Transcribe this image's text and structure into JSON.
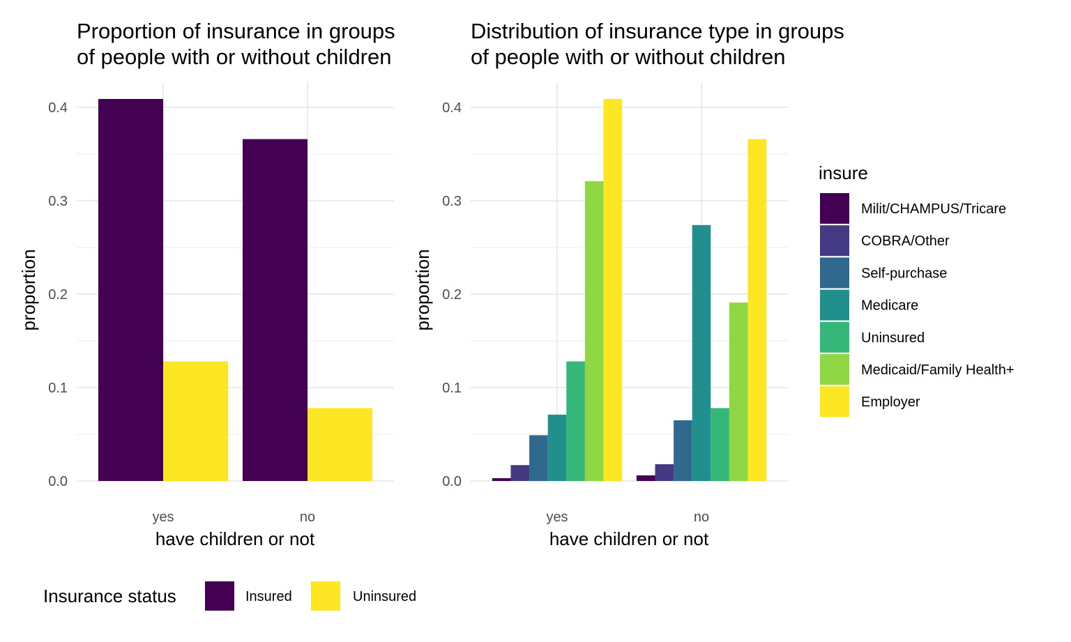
{
  "chart_data": [
    {
      "type": "bar",
      "title_lines": [
        "Proportion of insurance in groups",
        "of people with or without children"
      ],
      "xlabel": "have children or not",
      "ylabel": "proportion",
      "categories": [
        "yes",
        "no"
      ],
      "ylim": [
        0,
        0.41
      ],
      "yticks": [
        "0.0",
        "0.1",
        "0.2",
        "0.3",
        "0.4"
      ],
      "ytick_values": [
        0,
        0.1,
        0.2,
        0.3,
        0.4
      ],
      "grid": true,
      "series": [
        {
          "name": "Insured",
          "color": "#440154",
          "values": [
            0.409,
            0.366
          ]
        },
        {
          "name": "Uninsured",
          "color": "#fde725",
          "values": [
            0.128,
            0.078
          ]
        }
      ],
      "legend": {
        "title": "Insurance status",
        "placement": "bottom"
      }
    },
    {
      "type": "bar",
      "title_lines": [
        "Distribution of insurance type in groups",
        "of people with or without children"
      ],
      "xlabel": "have children or not",
      "ylabel": "proportion",
      "categories": [
        "yes",
        "no"
      ],
      "ylim": [
        0,
        0.41
      ],
      "yticks": [
        "0.0",
        "0.1",
        "0.2",
        "0.3",
        "0.4"
      ],
      "ytick_values": [
        0,
        0.1,
        0.2,
        0.3,
        0.4
      ],
      "grid": true,
      "series": [
        {
          "name": "Milit/CHAMPUS/Tricare",
          "color": "#440154",
          "values": [
            0.003,
            0.006
          ]
        },
        {
          "name": "COBRA/Other",
          "color": "#443983",
          "values": [
            0.017,
            0.018
          ]
        },
        {
          "name": "Self-purchase",
          "color": "#31688e",
          "values": [
            0.049,
            0.065
          ]
        },
        {
          "name": "Medicare",
          "color": "#21908c",
          "values": [
            0.071,
            0.274
          ]
        },
        {
          "name": "Uninsured",
          "color": "#35b779",
          "values": [
            0.128,
            0.078
          ]
        },
        {
          "name": "Medicaid/Family Health+",
          "color": "#8fd744",
          "values": [
            0.321,
            0.191
          ]
        },
        {
          "name": "Employer",
          "color": "#fde725",
          "values": [
            0.409,
            0.366
          ]
        }
      ],
      "legend": {
        "title": "insure",
        "placement": "right"
      }
    }
  ]
}
